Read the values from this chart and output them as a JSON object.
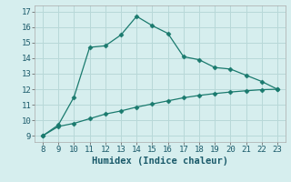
{
  "x_upper": [
    8,
    9,
    10,
    11,
    12,
    13,
    14,
    15,
    16,
    17,
    18,
    19,
    20,
    21,
    22,
    23
  ],
  "y_upper": [
    9.0,
    9.7,
    11.5,
    14.7,
    14.8,
    15.5,
    16.7,
    16.1,
    15.6,
    14.1,
    13.9,
    13.4,
    13.3,
    12.9,
    12.5,
    12.0
  ],
  "x_lower": [
    8,
    9,
    10,
    11,
    12,
    13,
    14,
    15,
    16,
    17,
    18,
    19,
    20,
    21,
    22,
    23
  ],
  "y_lower": [
    9.0,
    9.6,
    9.8,
    10.1,
    10.4,
    10.6,
    10.85,
    11.05,
    11.25,
    11.45,
    11.6,
    11.72,
    11.82,
    11.9,
    11.97,
    12.0
  ],
  "line_color": "#1a7a6e",
  "bg_color": "#d6eeee",
  "grid_color": "#b8d8d8",
  "xlabel": "Humidex (Indice chaleur)",
  "xlim": [
    7.5,
    23.5
  ],
  "ylim": [
    8.6,
    17.4
  ],
  "xticks": [
    8,
    9,
    10,
    11,
    12,
    13,
    14,
    15,
    16,
    17,
    18,
    19,
    20,
    21,
    22,
    23
  ],
  "yticks": [
    9,
    10,
    11,
    12,
    13,
    14,
    15,
    16,
    17
  ],
  "markersize": 2.5,
  "linewidth": 0.9,
  "tick_labelsize": 6.5,
  "xlabel_fontsize": 7.5,
  "figwidth": 3.2,
  "figheight": 2.0,
  "dpi": 100
}
